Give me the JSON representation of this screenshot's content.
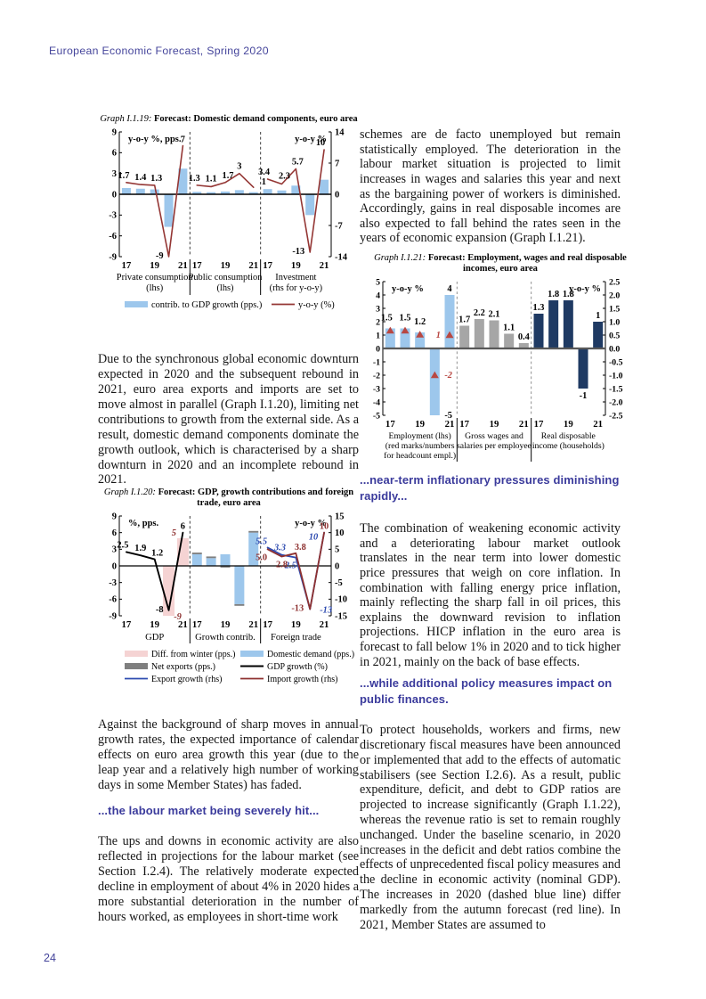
{
  "page": {
    "header": "European Economic Forecast, Spring 2020",
    "page_number": "24"
  },
  "accent_color": "#3b3b9c",
  "left_column": {
    "p1": "Due to the synchronous global economic downturn expected in 2020 and the subsequent rebound in 2021, euro area exports and imports are set to move almost in parallel (Graph I.1.20), limiting net contributions to growth from the external side. As a result, domestic demand components dominate the growth outlook, which is characterised by a sharp downturn in 2020 and an incomplete rebound in 2021.",
    "p2": "Against the background of sharp moves in annual growth rates, the expected importance of calendar effects on euro area growth this year (due to the leap year and a relatively high number of working days in some Member States) has faded.",
    "h1": "...the labour market being severely hit...",
    "p3": "The ups and downs in economic activity are also reflected in projections for the labour market (see Section I.2.4). The relatively moderate expected decline in employment of about 4% in 2020 hides a more substantial deterioration in the number of hours worked, as employees in short-time work"
  },
  "right_column": {
    "p4": "schemes are de facto unemployed but remain statistically employed. The deterioration in the labour market situation is projected to limit increases in wages and salaries this year and next as the bargaining power of workers is diminished. Accordingly, gains in real disposable incomes are also expected to fall behind the rates seen in the years of economic expansion (Graph I.1.21).",
    "h2": "...near-term inflationary pressures diminishing rapidly...",
    "p5": "The combination of weakening economic activity and a deteriorating labour market outlook translates in the near term into lower domestic price pressures that weigh on core inflation. In combination with falling energy price inflation, mainly reflecting the sharp fall in oil prices, this explains the downward revision to inflation projections. HICP inflation in the euro area is forecast to fall below 1% in 2020 and to tick higher in 2021, mainly on the back of base effects.",
    "h3": "...while additional policy measures impact on public finances.",
    "p6": "To protect households, workers and firms, new discretionary fiscal measures have been announced or implemented that add to the effects of automatic stabilisers (see Section I.2.6). As a result, public expenditure, deficit, and debt to GDP ratios are projected to increase significantly (Graph I.1.22), whereas the revenue ratio is set to remain roughly unchanged. Under the baseline scenario, in 2020 increases in the deficit and debt ratios combine the effects of unprecedented fiscal policy measures and the decline in economic activity (nominal GDP). The increases in 2020 (dashed blue line) differ markedly from the autumn forecast (red line). In 2021, Member States are assumed to"
  },
  "chart_data": [
    {
      "id": "g19",
      "type": "bar",
      "title_prefix": "Graph I.1.19:",
      "title": "Forecast: Domestic demand components, euro area",
      "left_axis_label": "y-o-y %, pps.",
      "right_axis_label": "y-o-y %",
      "left_ticks": [
        9,
        6,
        3,
        0,
        -3,
        -6,
        -9
      ],
      "right_ticks": [
        14,
        7,
        0,
        -7,
        -14
      ],
      "left_range": [
        -9,
        9
      ],
      "right_range": [
        -14,
        14
      ],
      "x": [
        "17",
        "18",
        "19",
        "20",
        "21"
      ],
      "x_shown": [
        "17",
        "19",
        "21"
      ],
      "bar_series_name": "contrib. to GDP growth (pps.)",
      "line_series_name": "y-o-y (%)",
      "panels": [
        {
          "caption": [
            "Private consumption",
            "(lhs)"
          ],
          "bars": [
            0.9,
            0.8,
            0.7,
            -4.7,
            3.7
          ],
          "line": [
            1.7,
            1.4,
            1.3,
            -9,
            7
          ],
          "line_axis": "left",
          "line_labels": [
            "1.7",
            "1.4",
            "1.3",
            "-9",
            "7"
          ]
        },
        {
          "caption": [
            "Public consumption",
            "(lhs)"
          ],
          "bars": [
            0.35,
            0.3,
            0.4,
            0.6,
            0.3
          ],
          "line": [
            1.3,
            1.1,
            1.7,
            3,
            1
          ],
          "line_axis": "left",
          "line_labels": [
            "1.3",
            "1.1",
            "1.7",
            "3",
            "1"
          ]
        },
        {
          "caption": [
            "Investment",
            "(rhs for y-o-y)"
          ],
          "bars": [
            0.75,
            0.55,
            1.25,
            -3,
            2.1
          ],
          "line": [
            3.4,
            2.3,
            5.7,
            -13,
            10
          ],
          "line_axis": "right",
          "line_labels": [
            "3.4",
            "2.3",
            "5.7",
            "-13",
            "10"
          ]
        }
      ],
      "colors": {
        "bar": "#9dc7ec",
        "line": "#943634"
      }
    },
    {
      "id": "g20",
      "type": "bar",
      "title_prefix": "Graph I.1.20:",
      "title": "Forecast: GDP, growth contributions and foreign trade, euro area",
      "left_axis_label": "%, pps.",
      "right_axis_label": "y-o-y %",
      "left_ticks": [
        9,
        6,
        3,
        0,
        -3,
        -6,
        -9
      ],
      "right_ticks": [
        15,
        10,
        5,
        0,
        -5,
        -10,
        -15
      ],
      "left_range": [
        -9,
        9
      ],
      "right_range": [
        -15,
        15
      ],
      "x": [
        "17",
        "18",
        "19",
        "20",
        "21"
      ],
      "x_shown": [
        "17",
        "19",
        "21"
      ],
      "panels": [
        {
          "caption": [
            "GDP"
          ],
          "diff_bars": [
            null,
            null,
            null,
            -9,
            5
          ],
          "diff_labels": [
            null,
            null,
            null,
            "-9",
            "5"
          ],
          "line": [
            2.5,
            1.9,
            1.2,
            -8,
            6
          ],
          "line_labels": [
            "2.5",
            "1.9",
            "1.2",
            "-8",
            "6"
          ]
        },
        {
          "caption": [
            "Growth contrib."
          ],
          "domestic_demand": [
            2.1,
            1.4,
            2.1,
            -6.9,
            6.0
          ],
          "net_exports": [
            0.3,
            0.3,
            -0.3,
            -0.3,
            0.3
          ]
        },
        {
          "caption": [
            "Foreign trade"
          ],
          "export_line": [
            5.5,
            3.3,
            2.5,
            -13,
            10
          ],
          "export_labels": [
            "5.5",
            "3.3",
            "2.5",
            "-13",
            "10"
          ],
          "import_line": [
            5.0,
            2.8,
            3.8,
            -13,
            10
          ],
          "import_labels": [
            "5.0",
            "2.8",
            "3.8",
            "-13",
            "10"
          ]
        }
      ],
      "legend": [
        {
          "swatch": "pink-fill",
          "label": "Diff. from winter (pps.)"
        },
        {
          "swatch": "blue-fill",
          "label": "Domestic demand (pps.)"
        },
        {
          "swatch": "gray-fill",
          "label": "Net exports (pps.)"
        },
        {
          "swatch": "black-line",
          "label": "GDP growth (%)"
        },
        {
          "swatch": "blue-line",
          "label": "Export growth (rhs)"
        },
        {
          "swatch": "darkred-line",
          "label": "Import growth (rhs)"
        }
      ],
      "colors": {
        "pink": "#f5d3d3",
        "blue_bar": "#9dc7ec",
        "gray": "#7f7f7f",
        "black_line": "#000000",
        "export": "#2e4bb0",
        "import": "#8e3130"
      }
    },
    {
      "id": "g21",
      "type": "bar",
      "title_prefix": "Graph I.1.21:",
      "title": "Forecast: Employment, wages and real disposable incomes, euro area",
      "left_axis_label": "y-o-y %",
      "right_axis_label": "y-o-y %",
      "left_ticks": [
        5,
        4,
        3,
        2,
        1,
        0,
        -1,
        -2,
        -3,
        -4,
        -5
      ],
      "right_ticks": [
        "2.5",
        "2.0",
        "1.5",
        "1.0",
        "0.5",
        "0.0",
        "-0.5",
        "-1.0",
        "-1.5",
        "-2.0",
        "-2.5"
      ],
      "left_range": [
        -5,
        5
      ],
      "right_range": [
        -2.5,
        2.5
      ],
      "x": [
        "17",
        "18",
        "19",
        "20",
        "21"
      ],
      "x_shown": [
        "17",
        "19",
        "21"
      ],
      "panels": [
        {
          "caption": [
            "Employment (lhs)",
            "(red marks/numbers",
            "for headcount empl.)"
          ],
          "axis": "left",
          "bars": [
            1.5,
            1.5,
            1.2,
            -5,
            4
          ],
          "bar_labels": [
            "1.5",
            "1.5",
            "1.2",
            "-5",
            "4"
          ],
          "markers": [
            1.5,
            1.5,
            1.2,
            -2,
            1
          ],
          "marker_labels": [
            null,
            null,
            null,
            "-2",
            "1"
          ]
        },
        {
          "caption": [
            "Gross wages and",
            "salaries per employee"
          ],
          "axis": "left",
          "bars": [
            1.7,
            2.2,
            2.1,
            1.1,
            0.4
          ],
          "bar_labels": [
            "1.7",
            "2.2",
            "2.1",
            "1.1",
            "0.4"
          ]
        },
        {
          "caption": [
            "Real disposable",
            "income (households)"
          ],
          "axis": "right",
          "bars": [
            1.3,
            1.8,
            1.8,
            -1.5,
            1
          ],
          "bar_labels": [
            "1.3",
            "1.8",
            "1.8",
            "-1",
            "1"
          ]
        }
      ],
      "colors": {
        "employment_bar": "#9dc7ec",
        "wages_bar": "#a6a6a6",
        "income_bar": "#1f3a63",
        "marker": "#b84742"
      }
    }
  ]
}
